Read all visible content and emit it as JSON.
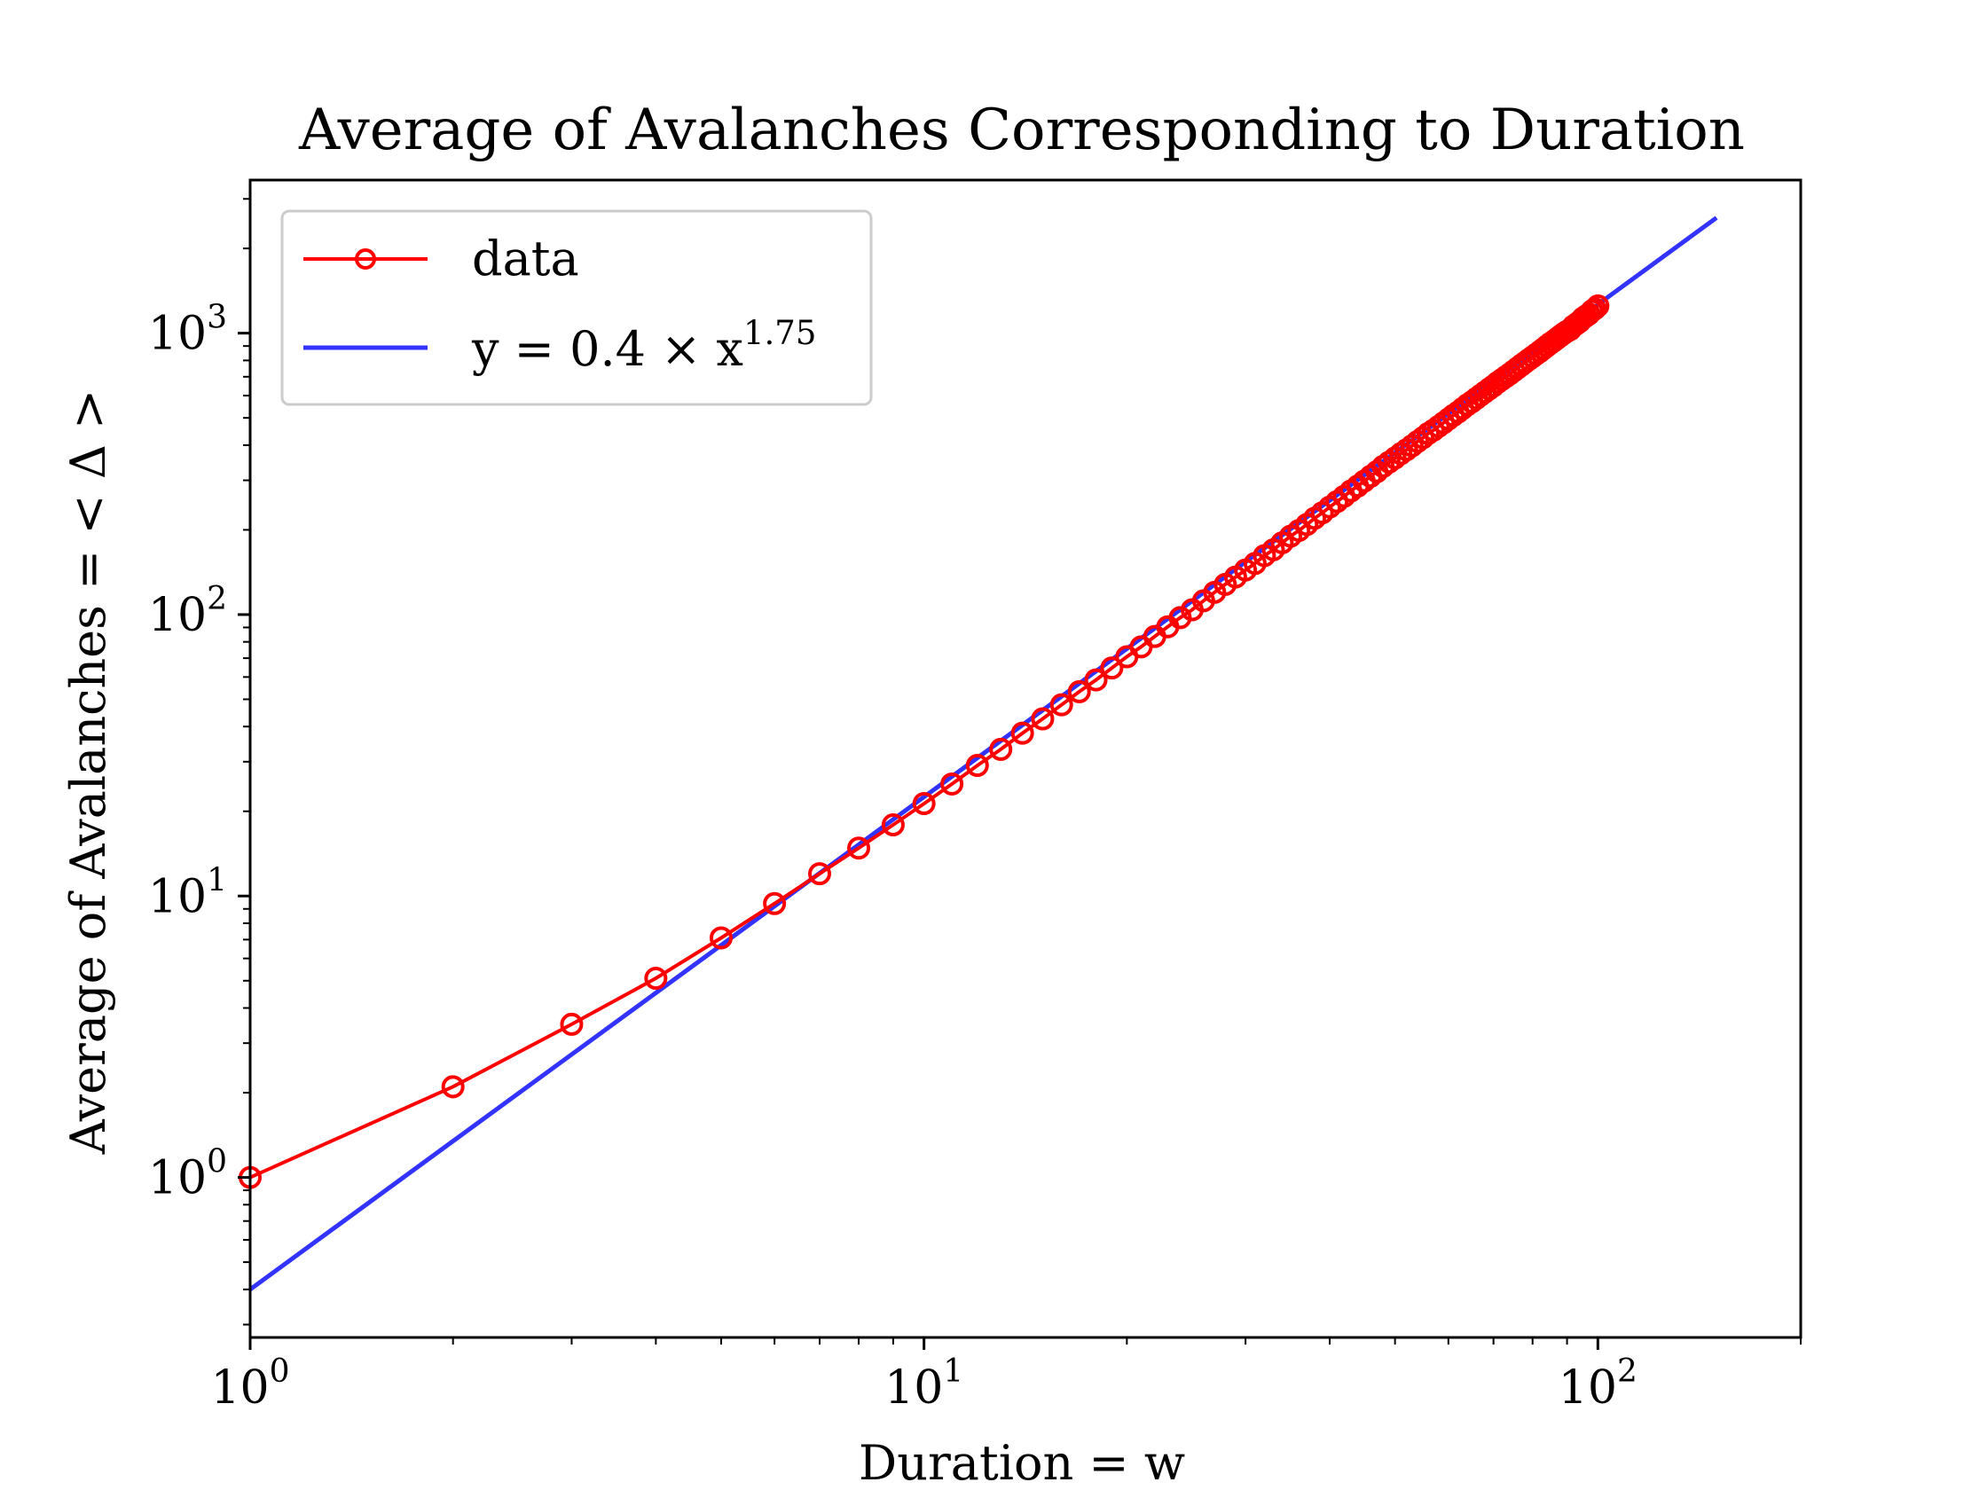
{
  "chart_data": {
    "type": "line",
    "title": "Average of Avalanches Corresponding to Duration",
    "xlabel": "Duration = w",
    "ylabel": "Average of Avalanches = < Δ >",
    "xscale": "log",
    "yscale": "log",
    "xlim": [
      1,
      200
    ],
    "ylim": [
      0.27,
      3500
    ],
    "xticks": [
      {
        "value": 1,
        "base": "10",
        "exp": "0"
      },
      {
        "value": 10,
        "base": "10",
        "exp": "1"
      },
      {
        "value": 100,
        "base": "10",
        "exp": "2"
      }
    ],
    "yticks": [
      {
        "value": 1,
        "base": "10",
        "exp": "0"
      },
      {
        "value": 10,
        "base": "10",
        "exp": "1"
      },
      {
        "value": 100,
        "base": "10",
        "exp": "2"
      },
      {
        "value": 1000,
        "base": "10",
        "exp": "3"
      }
    ],
    "grid": false,
    "legend_position": "top-left",
    "series": [
      {
        "name": "data",
        "color": "#ff0000",
        "marker": "open-circle",
        "points": [
          [
            1,
            1.0
          ],
          [
            2,
            2.1
          ],
          [
            3,
            3.5
          ],
          [
            4,
            5.1
          ],
          [
            5,
            7.1
          ],
          [
            6,
            9.4
          ],
          [
            7,
            12.0
          ],
          [
            8,
            14.8
          ],
          [
            9,
            17.9
          ],
          [
            10,
            21.3
          ],
          [
            11,
            25.0
          ],
          [
            12,
            29.1
          ],
          [
            13,
            33.2
          ],
          [
            14,
            37.9
          ],
          [
            15,
            42.6
          ],
          [
            16,
            47.8
          ],
          [
            17,
            53.2
          ],
          [
            18,
            58.6
          ],
          [
            19,
            64.6
          ],
          [
            20,
            70.8
          ],
          [
            21,
            76.8
          ],
          [
            22,
            83.6
          ],
          [
            23,
            90.5
          ],
          [
            24,
            97.5
          ],
          [
            25,
            104
          ],
          [
            26,
            112
          ],
          [
            27,
            120
          ],
          [
            28,
            128
          ],
          [
            29,
            136
          ],
          [
            30,
            144
          ],
          [
            31,
            152
          ],
          [
            32,
            162
          ],
          [
            33,
            170
          ],
          [
            34,
            180
          ],
          [
            35,
            190
          ],
          [
            36,
            199
          ],
          [
            37,
            209
          ],
          [
            38,
            220
          ],
          [
            39,
            230
          ],
          [
            40,
            241
          ],
          [
            41,
            252
          ],
          [
            42,
            263
          ],
          [
            43,
            275
          ],
          [
            44,
            286
          ],
          [
            45,
            298
          ],
          [
            46,
            310
          ],
          [
            47,
            322
          ],
          [
            48,
            336
          ],
          [
            49,
            348
          ],
          [
            50,
            360
          ],
          [
            51,
            373
          ],
          [
            52,
            385
          ],
          [
            53,
            398
          ],
          [
            54,
            412
          ],
          [
            55,
            425
          ],
          [
            56,
            440
          ],
          [
            57,
            452
          ],
          [
            58,
            466
          ],
          [
            59,
            480
          ],
          [
            60,
            495
          ],
          [
            61,
            510
          ],
          [
            62,
            524
          ],
          [
            63,
            540
          ],
          [
            64,
            556
          ],
          [
            65,
            570
          ],
          [
            66,
            586
          ],
          [
            67,
            602
          ],
          [
            68,
            618
          ],
          [
            69,
            634
          ],
          [
            70,
            650
          ],
          [
            71,
            668
          ],
          [
            72,
            684
          ],
          [
            73,
            700
          ],
          [
            74,
            716
          ],
          [
            75,
            734
          ],
          [
            76,
            752
          ],
          [
            77,
            770
          ],
          [
            78,
            788
          ],
          [
            79,
            806
          ],
          [
            80,
            824
          ],
          [
            81,
            842
          ],
          [
            82,
            860
          ],
          [
            83,
            880
          ],
          [
            84,
            900
          ],
          [
            85,
            920
          ],
          [
            86,
            938
          ],
          [
            87,
            958
          ],
          [
            88,
            978
          ],
          [
            89,
            998
          ],
          [
            90,
            1015
          ],
          [
            91,
            1030
          ],
          [
            92,
            1060
          ],
          [
            93,
            1080
          ],
          [
            94,
            1100
          ],
          [
            95,
            1130
          ],
          [
            96,
            1150
          ],
          [
            97,
            1170
          ],
          [
            98,
            1200
          ],
          [
            99,
            1220
          ],
          [
            100,
            1250
          ]
        ]
      },
      {
        "name": "y = 0.4 × x^1.75",
        "color": "#3333ff",
        "marker": "none",
        "fit": {
          "coefficient": 0.4,
          "exponent": 1.75,
          "x_range": [
            1,
            150
          ]
        }
      }
    ],
    "legend": [
      {
        "label_main": "data"
      },
      {
        "label_main": "y = 0.4 × x",
        "label_exp": "1.75"
      }
    ]
  }
}
